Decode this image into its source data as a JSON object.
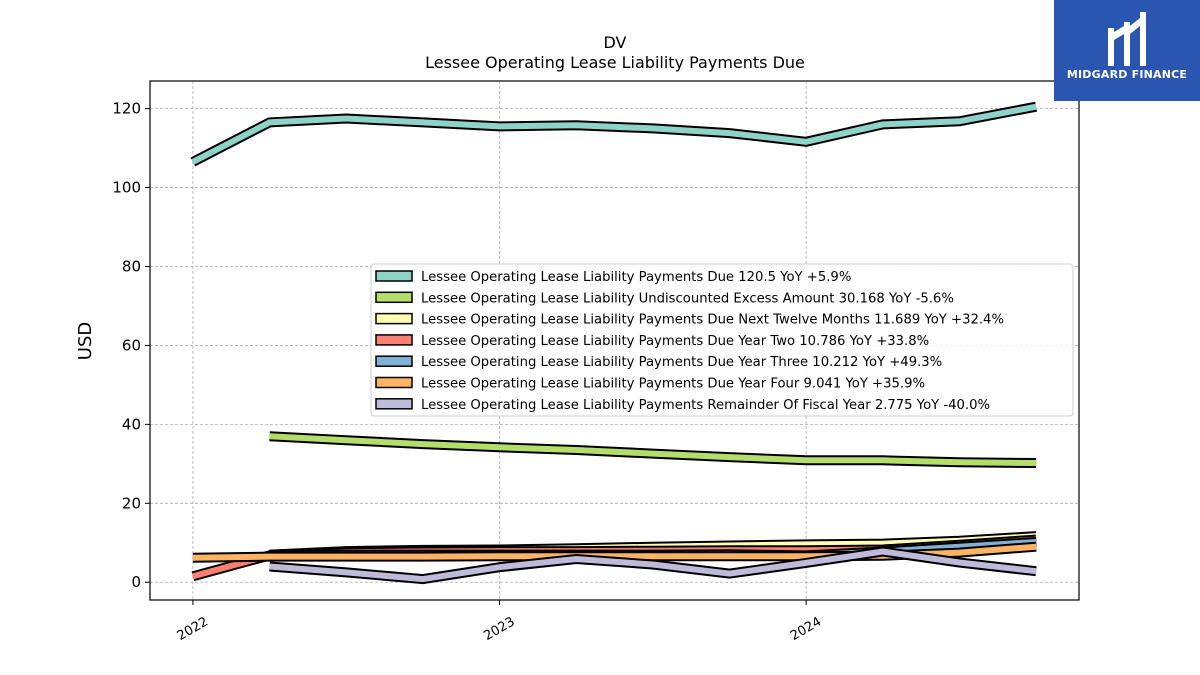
{
  "brand": {
    "name": "MIDGARD FINANCE",
    "color": "#2a55b0"
  },
  "chart_data": {
    "type": "line",
    "title": "DV",
    "subtitle": "Lessee Operating Lease Liability Payments Due",
    "ylabel": "USD",
    "xlabel": "",
    "ylim": [
      -4.5,
      127
    ],
    "xlim": [
      2021.86,
      2024.89
    ],
    "yticks": [
      0,
      20,
      40,
      60,
      80,
      100,
      120
    ],
    "xticks": [
      {
        "value": 2022,
        "label": "2022"
      },
      {
        "value": 2023,
        "label": "2023"
      },
      {
        "value": 2024,
        "label": "2024"
      }
    ],
    "grid": true,
    "legend_position": "center-right",
    "series": [
      {
        "name": "Lessee Operating Lease Liability Payments Due",
        "legend": "Lessee Operating Lease Liability Payments Due  120.5 YoY +5.9%",
        "color": "#8dd3c7",
        "x": [
          2022.0,
          2022.25,
          2022.5,
          2022.75,
          2023.0,
          2023.25,
          2023.5,
          2023.75,
          2024.0,
          2024.25,
          2024.5,
          2024.75
        ],
        "y": [
          106.5,
          116.5,
          117.5,
          116.5,
          115.5,
          115.8,
          115.0,
          113.8,
          111.6,
          116.0,
          116.8,
          120.5
        ]
      },
      {
        "name": "Lessee Operating Lease Liability Undiscounted Excess Amount",
        "legend": "Lessee Operating Lease Liability Undiscounted Excess Amount  30.168 YoY -5.6%",
        "color": "#b3de69",
        "x": [
          2022.25,
          2022.5,
          2022.75,
          2023.0,
          2023.25,
          2023.5,
          2023.75,
          2024.0,
          2024.25,
          2024.5,
          2024.75
        ],
        "y": [
          37.0,
          36.0,
          35.0,
          34.2,
          33.5,
          32.6,
          31.7,
          30.9,
          30.9,
          30.4,
          30.2
        ]
      },
      {
        "name": "Lessee Operating Lease Liability Payments Due Next Twelve Months",
        "legend": "Lessee Operating Lease Liability Payments Due Next Twelve Months  11.689 YoY +32.4%",
        "color": "#ffffb3",
        "x": [
          2022.25,
          2022.5,
          2022.75,
          2023.0,
          2023.25,
          2023.5,
          2023.75,
          2024.0,
          2024.25,
          2024.5,
          2024.75
        ],
        "y": [
          7.0,
          7.9,
          8.2,
          8.3,
          8.6,
          9.0,
          9.3,
          9.6,
          9.8,
          10.5,
          11.7
        ]
      },
      {
        "name": "Lessee Operating Lease Liability Payments Due Year Two",
        "legend": "Lessee Operating Lease Liability Payments Due Year Two  10.786 YoY +33.8%",
        "color": "#fb8072",
        "x": [
          2022.0,
          2022.25,
          2022.5,
          2022.75,
          2023.0,
          2023.25,
          2023.5,
          2023.75,
          2024.0,
          2024.25,
          2024.5,
          2024.75
        ],
        "y": [
          1.5,
          6.8,
          7.6,
          7.8,
          7.9,
          7.9,
          8.0,
          8.1,
          8.1,
          8.3,
          9.5,
          10.8
        ]
      },
      {
        "name": "Lessee Operating Lease Liability Payments Due Year Three",
        "legend": "Lessee Operating Lease Liability Payments Due Year Three  10.212 YoY +49.3%",
        "color": "#80b1d3",
        "x": [
          2022.25,
          2022.5,
          2022.75,
          2023.0,
          2023.25,
          2023.5,
          2023.75,
          2024.0,
          2024.25,
          2024.5,
          2024.75
        ],
        "y": [
          6.8,
          7.0,
          7.0,
          7.0,
          7.0,
          7.0,
          7.1,
          6.8,
          7.8,
          9.0,
          10.2
        ]
      },
      {
        "name": "Lessee Operating Lease Liability Payments Due Year Four",
        "legend": "Lessee Operating Lease Liability Payments Due Year Four  9.041 YoY +35.9%",
        "color": "#fdb462",
        "x": [
          2022.0,
          2022.25,
          2022.5,
          2022.75,
          2023.0,
          2023.25,
          2023.5,
          2023.75,
          2024.0,
          2024.25,
          2024.5,
          2024.75
        ],
        "y": [
          6.2,
          6.5,
          6.5,
          6.5,
          6.6,
          6.6,
          6.6,
          6.6,
          6.6,
          6.7,
          7.5,
          9.0
        ]
      },
      {
        "name": "Lessee Operating Lease Liability Payments Remainder Of Fiscal Year",
        "legend": "Lessee Operating Lease Liability Payments Remainder Of Fiscal Year  2.775 YoY -40.0%",
        "color": "#bebada",
        "x": [
          2022.25,
          2022.5,
          2022.75,
          2023.0,
          2023.25,
          2023.5,
          2023.75,
          2024.0,
          2024.25,
          2024.5,
          2024.75
        ],
        "y": [
          4.0,
          2.5,
          0.8,
          3.8,
          5.9,
          4.5,
          2.2,
          4.9,
          7.8,
          5.0,
          2.8
        ]
      }
    ]
  }
}
